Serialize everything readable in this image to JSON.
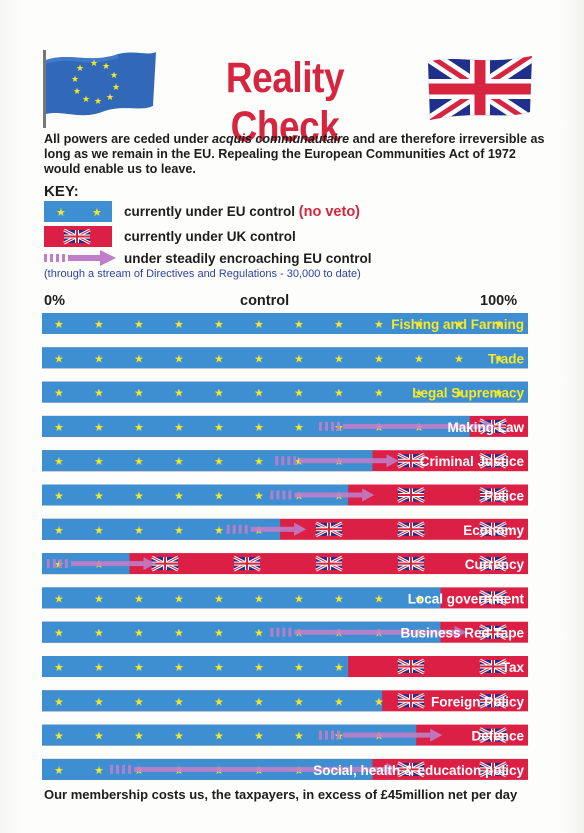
{
  "header": {
    "title": "Reality Check",
    "intro_part1": "All powers are ceded under ",
    "intro_em": "acquis communautaire",
    "intro_part2": " and are therefore irreversible as long as we remain in the EU.  Repealing the European Communities Act of 1972 would enable us to leave."
  },
  "key": {
    "title": "KEY:",
    "eu_label": "currently under EU control",
    "eu_suffix": "(no veto)",
    "uk_label": "currently under UK control",
    "enc_label": "under steadily encroaching EU control",
    "note": "(through a stream of Directives and Regulations - 30,000 to date)"
  },
  "chart_data": {
    "type": "bar",
    "orientation": "horizontal",
    "stacked": true,
    "xlabel": "control",
    "xlim": [
      0,
      100
    ],
    "xtick_labels": [
      "0%",
      "100%"
    ],
    "series_meaning": {
      "eu": "currently under EU control (no veto)",
      "uk": "currently under UK control",
      "encroaching": "under steadily encroaching EU control"
    },
    "categories": [
      "Fishing and Farming",
      "Trade",
      "Legal Supremacy",
      "Making Law",
      "Criminal Justice",
      "Police",
      "Economy",
      "Currency",
      "Local government",
      "Business Red Tape",
      "Tax",
      "Foreign Policy",
      "Defence",
      "Social, health & education policy"
    ],
    "eu_percent": [
      100,
      100,
      100,
      88,
      68,
      63,
      49,
      18,
      82,
      82,
      63,
      70,
      77,
      68
    ],
    "encroaching_start": [
      null,
      null,
      null,
      57,
      48,
      47,
      38,
      1,
      null,
      47,
      null,
      null,
      57,
      14
    ],
    "colors": {
      "eu": "#3d8fd2",
      "uk": "#dc1f45",
      "star": "#f6e827",
      "label_on_eu": "#f6e827",
      "label": "#ffffff",
      "arrow": "#c07ec8"
    }
  },
  "footer": {
    "text": "Our membership costs us, the taxpayers, in excess of £45million net per day"
  }
}
